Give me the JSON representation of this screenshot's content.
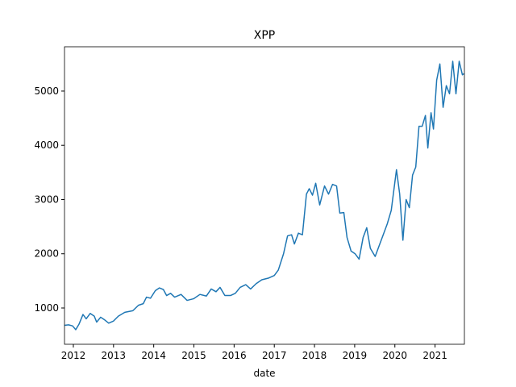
{
  "chart_data": {
    "type": "line",
    "title": "XPP",
    "xlabel": "date",
    "x": [
      2011.78,
      2011.88,
      2011.98,
      2012.06,
      2012.14,
      2012.24,
      2012.32,
      2012.42,
      2012.52,
      2012.58,
      2012.68,
      2012.78,
      2012.88,
      2013.0,
      2013.12,
      2013.28,
      2013.48,
      2013.62,
      2013.74,
      2013.82,
      2013.92,
      2014.04,
      2014.14,
      2014.24,
      2014.32,
      2014.42,
      2014.52,
      2014.68,
      2014.83,
      2014.99,
      2015.15,
      2015.31,
      2015.43,
      2015.55,
      2015.65,
      2015.77,
      2015.91,
      2016.03,
      2016.15,
      2016.29,
      2016.41,
      2016.55,
      2016.69,
      2016.85,
      2017.0,
      2017.1,
      2017.23,
      2017.33,
      2017.43,
      2017.5,
      2017.6,
      2017.7,
      2017.8,
      2017.87,
      2017.95,
      2018.03,
      2018.13,
      2018.25,
      2018.35,
      2018.45,
      2018.55,
      2018.63,
      2018.73,
      2018.81,
      2018.91,
      2019.01,
      2019.11,
      2019.21,
      2019.3,
      2019.39,
      2019.51,
      2019.61,
      2019.71,
      2019.81,
      2019.91,
      2020.04,
      2020.12,
      2020.2,
      2020.28,
      2020.36,
      2020.44,
      2020.52,
      2020.6,
      2020.68,
      2020.76,
      2020.82,
      2020.9,
      2020.96,
      2021.04,
      2021.12,
      2021.2,
      2021.28,
      2021.36,
      2021.44,
      2021.52,
      2021.6,
      2021.68,
      2021.72
    ],
    "series": [
      {
        "name": "XPP",
        "color": "#1f77b4",
        "values": [
          680,
          690,
          670,
          600,
          700,
          880,
          800,
          900,
          850,
          740,
          830,
          780,
          720,
          760,
          850,
          920,
          950,
          1050,
          1080,
          1200,
          1180,
          1320,
          1370,
          1340,
          1230,
          1270,
          1200,
          1250,
          1140,
          1170,
          1250,
          1220,
          1350,
          1300,
          1380,
          1230,
          1230,
          1270,
          1380,
          1430,
          1350,
          1450,
          1520,
          1550,
          1600,
          1700,
          2000,
          2330,
          2350,
          2180,
          2380,
          2350,
          3100,
          3200,
          3080,
          3300,
          2900,
          3250,
          3100,
          3280,
          3250,
          2750,
          2760,
          2300,
          2050,
          2000,
          1900,
          2300,
          2480,
          2100,
          1950,
          2150,
          2350,
          2550,
          2800,
          3550,
          3100,
          2250,
          3000,
          2850,
          3450,
          3600,
          4350,
          4350,
          4550,
          3950,
          4600,
          4300,
          5200,
          5500,
          4700,
          5100,
          4950,
          5550,
          4950,
          5550,
          5300,
          5320
        ]
      }
    ],
    "xlim": [
      2011.78,
      2021.73
    ],
    "xticks": [
      2012,
      2013,
      2014,
      2015,
      2016,
      2017,
      2018,
      2019,
      2020,
      2021
    ],
    "ylim": [
      331,
      5817
    ],
    "yticks": [
      1000,
      2000,
      3000,
      4000,
      5000
    ]
  }
}
